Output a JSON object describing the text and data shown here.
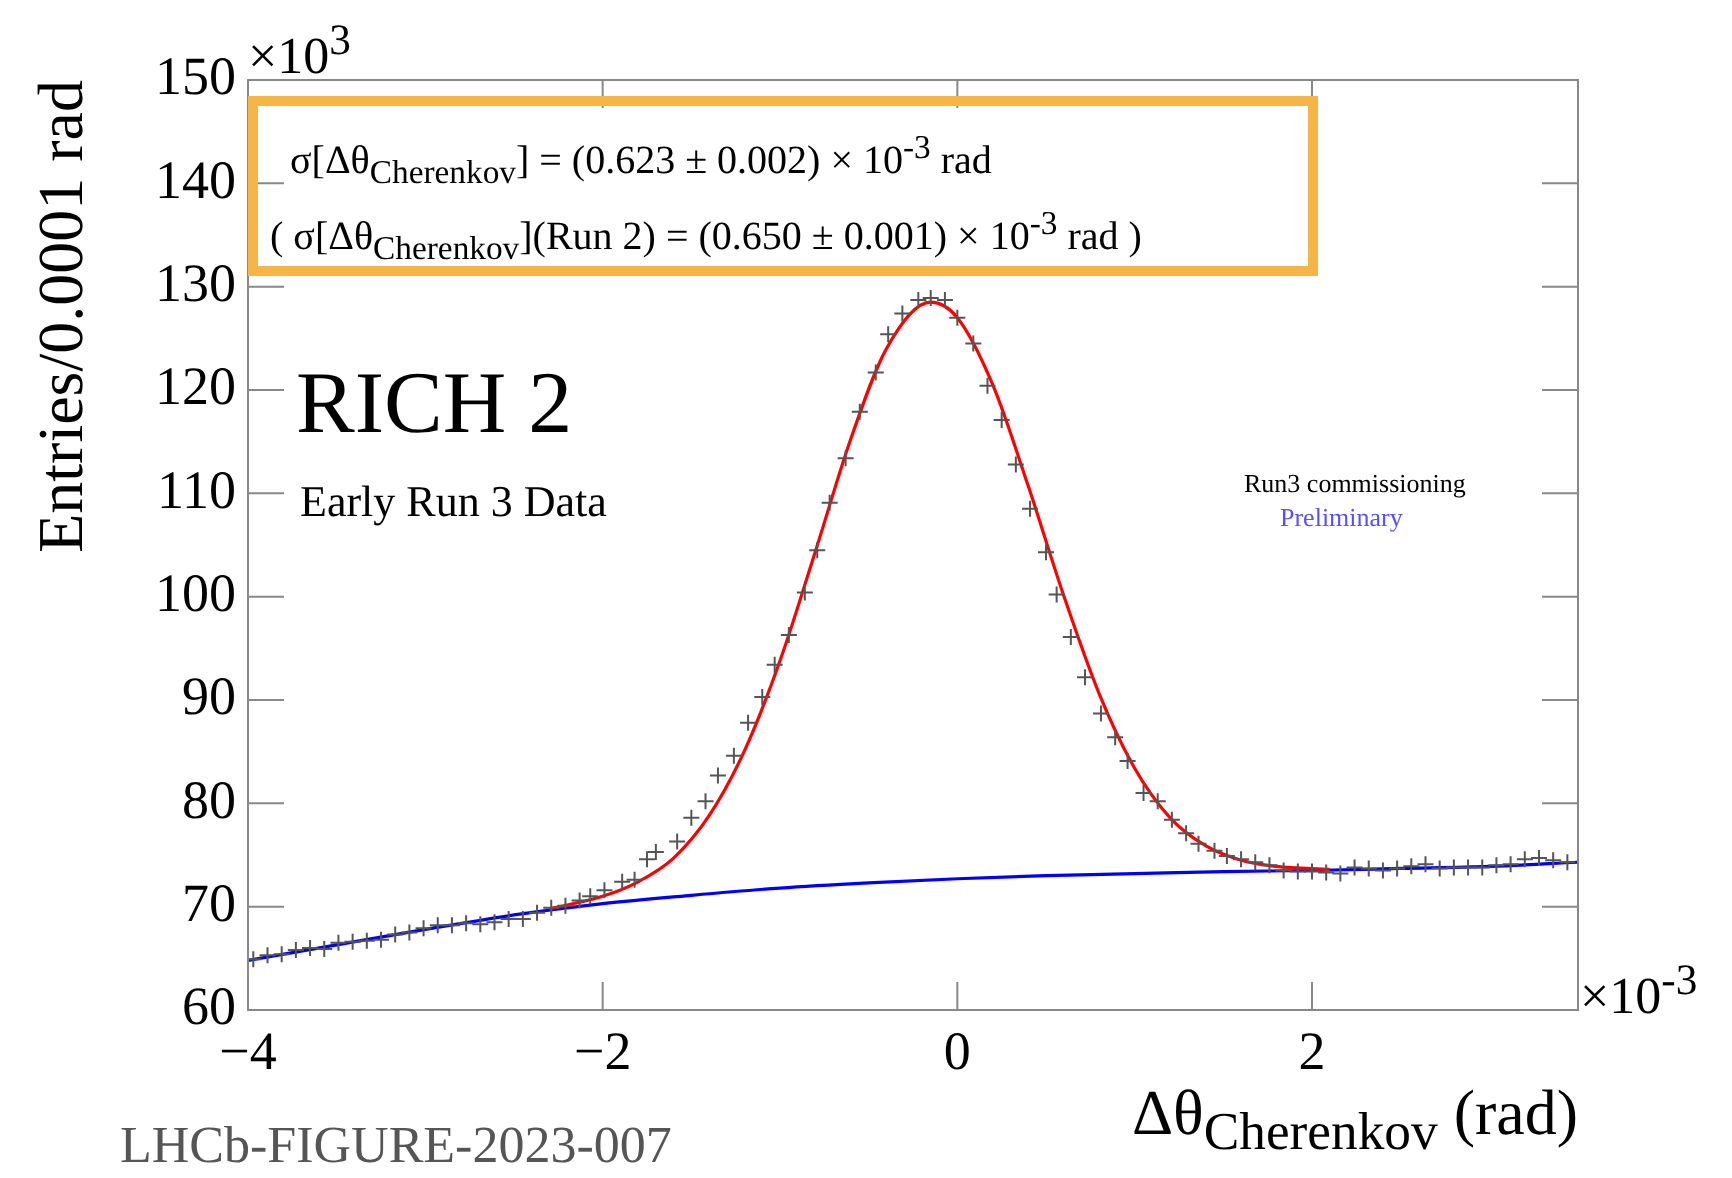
{
  "chart_data": {
    "type": "scatter",
    "xlabel": "Δθ$_{Cherenkov}$ (rad)",
    "ylabel": "Entries/0.0001 rad",
    "xlim": [
      -4,
      3.5
    ],
    "xticks": [
      -4,
      -2,
      0,
      2
    ],
    "ylim": [
      60,
      150
    ],
    "yticks": [
      60,
      70,
      80,
      90,
      100,
      110,
      120,
      130,
      140,
      150
    ],
    "grid": false,
    "legend": false,
    "annotations": [
      "×10$^{3}$",
      "×10$^{-3}$",
      "σ[Δθ$_{Cherenkov}$] = (0.623 ± 0.002) × 10$^{-3}$ rad",
      "( σ[Δθ$_{Cherenkov}$](Run 2) = (0.650 ± 0.001) × 10$^{-3}$  rad )",
      "RICH 2",
      "Early Run 3 Data",
      "Run3 commissioning",
      "Preliminary",
      "LHCb-FIGURE-2023-007"
    ],
    "series": [
      {
        "type": "scatter",
        "color": "#555555",
        "marker": "cross",
        "x": [
          -3.97,
          -3.89,
          -3.81,
          -3.73,
          -3.65,
          -3.57,
          -3.49,
          -3.41,
          -3.33,
          -3.25,
          -3.17,
          -3.09,
          -3.01,
          -2.93,
          -2.85,
          -2.77,
          -2.69,
          -2.61,
          -2.53,
          -2.45,
          -2.37,
          -2.29,
          -2.21,
          -2.13,
          -2.07,
          -1.99,
          -1.89,
          -1.82,
          -1.75,
          -1.7,
          -1.58,
          -1.5,
          -1.42,
          -1.35,
          -1.26,
          -1.18,
          -1.1,
          -1.03,
          -0.95,
          -0.86,
          -0.79,
          -0.72,
          -0.63,
          -0.55,
          -0.46,
          -0.39,
          -0.31,
          -0.22,
          -0.15,
          -0.07,
          0,
          0.09,
          0.17,
          0.25,
          0.33,
          0.41,
          0.5,
          0.56,
          0.64,
          0.72,
          0.81,
          0.89,
          0.96,
          1.05,
          1.13,
          1.21,
          1.29,
          1.36,
          1.45,
          1.52,
          1.6,
          1.68,
          1.76,
          1.84,
          1.92,
          2,
          2.08,
          2.16,
          2.24,
          2.32,
          2.4,
          2.48,
          2.56,
          2.64,
          2.72,
          2.8,
          2.88,
          2.96,
          3.04,
          3.12,
          3.2,
          3.28,
          3.36,
          3.44
        ],
        "values": [
          64.9,
          65.3,
          65.4,
          65.8,
          66.0,
          65.9,
          66.5,
          66.6,
          66.7,
          66.8,
          67.3,
          67.5,
          67.9,
          68.2,
          68.2,
          68.4,
          68.3,
          68.5,
          68.8,
          68.8,
          69.4,
          69.9,
          70.1,
          70.6,
          71.0,
          71.6,
          72.4,
          72.6,
          74.6,
          75.3,
          76.3,
          78.6,
          80.2,
          82.7,
          84.6,
          87.8,
          90.3,
          93.4,
          96.3,
          100.4,
          104.5,
          109.1,
          113.4,
          117.9,
          121.7,
          125.4,
          127.4,
          128.7,
          128.9,
          128.7,
          127.0,
          124.5,
          120.4,
          117.1,
          112.8,
          108.5,
          104.3,
          100.2,
          96.1,
          92.2,
          88.7,
          86.4,
          84.1,
          81.0,
          80.2,
          78.4,
          77.1,
          76.1,
          75.4,
          74.9,
          74.6,
          74.3,
          74.0,
          73.5,
          73.4,
          73.4,
          73.3,
          73.2,
          73.8,
          73.7,
          73.5,
          73.7,
          73.9,
          74.1,
          73.7,
          73.8,
          73.8,
          73.8,
          74.0,
          74.1,
          74.6,
          74.7,
          74.5,
          74.3
        ]
      },
      {
        "type": "line",
        "color": "#0000ff",
        "marker": "none",
        "line_style": "solid",
        "x": [
          -4,
          -3.5,
          -3,
          -2.5,
          -2,
          -1.5,
          -1,
          -0.5,
          0,
          0.5,
          1,
          1.5,
          2,
          2.5,
          3,
          3.5
        ],
        "values": [
          64.8,
          66.3,
          67.8,
          69.2,
          70.3,
          71.1,
          71.8,
          72.3,
          72.7,
          73.0,
          73.2,
          73.4,
          73.5,
          73.7,
          73.9,
          74.3
        ]
      },
      {
        "type": "line",
        "color": "#ff0000",
        "marker": "none",
        "line_style": "solid",
        "x": [
          -2.3,
          -2,
          -1.8,
          -1.6,
          -1.4,
          -1.2,
          -1,
          -0.8,
          -0.6,
          -0.4,
          -0.15,
          0,
          0.2,
          0.4,
          0.6,
          0.8,
          1,
          1.2,
          1.4,
          1.6,
          1.8,
          2.1
        ],
        "values": [
          69.8,
          71.0,
          72.4,
          74.7,
          78.8,
          85.1,
          93.8,
          104.4,
          115.3,
          124.0,
          128.5,
          127.0,
          120.5,
          110.7,
          100.1,
          90.6,
          83.4,
          78.6,
          75.9,
          74.5,
          73.9,
          73.6
        ]
      }
    ]
  }
}
